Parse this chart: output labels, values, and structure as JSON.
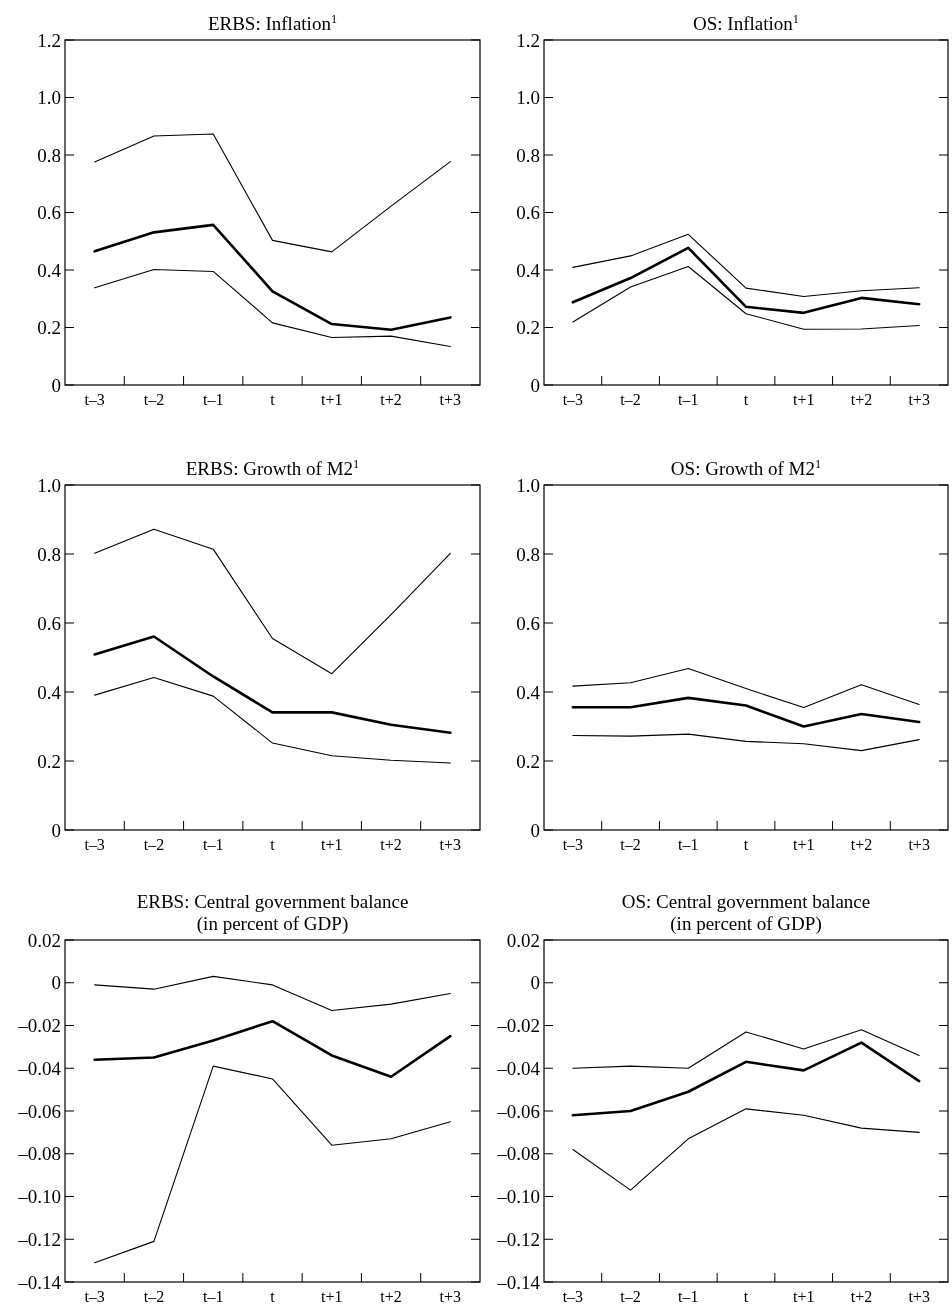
{
  "chart_data": [
    {
      "type": "line",
      "title": "ERBS: Inflation$^{1}$",
      "categories": [
        "t–3",
        "t–2",
        "t–1",
        "t",
        "t+1",
        "t+2",
        "t+3"
      ],
      "ylim": [
        0,
        1.2
      ],
      "yticks": [
        0,
        0.2,
        0.4,
        0.6,
        0.8,
        {
          "value": 1,
          "label": "1.0"
        },
        1.2
      ],
      "series": [
        {
          "color": "#000000",
          "values": [
            0.776,
            0.866,
            0.873,
            0.503,
            0.463,
            0.622,
            0.777
          ]
        },
        {
          "color": "#000000",
          "values": [
            0.465,
            0.531,
            0.557,
            0.326,
            0.212,
            0.192,
            0.235
          ]
        },
        {
          "color": "#000000",
          "values": [
            0.338,
            0.402,
            0.395,
            0.216,
            0.165,
            0.17,
            0.134
          ]
        }
      ]
    },
    {
      "type": "line",
      "title": "OS: Inflation$^{1}$",
      "categories": [
        "t–3",
        "t–2",
        "t–1",
        "t",
        "t+1",
        "t+2",
        "t+3"
      ],
      "ylim": [
        0,
        1.2
      ],
      "yticks": [
        0,
        0.2,
        0.4,
        0.6,
        0.8,
        {
          "value": 1,
          "label": "1.0"
        },
        1.2
      ],
      "series": [
        {
          "color": "#000000",
          "values": [
            0.409,
            0.449,
            0.524,
            0.337,
            0.308,
            0.328,
            0.338
          ]
        },
        {
          "color": "#000000",
          "values": [
            0.288,
            0.372,
            0.477,
            0.272,
            0.251,
            0.303,
            0.281
          ]
        },
        {
          "color": "#000000",
          "values": [
            0.219,
            0.341,
            0.412,
            0.248,
            0.194,
            0.195,
            0.207
          ]
        }
      ]
    },
    {
      "type": "line",
      "title": "ERBS: Growth of M2$^{1}$",
      "categories": [
        "t–3",
        "t–2",
        "t–1",
        "t",
        "t+1",
        "t+2",
        "t+3"
      ],
      "ylim": [
        0,
        1
      ],
      "yticks": [
        0,
        0.2,
        0.4,
        0.6,
        0.8,
        {
          "value": 1,
          "label": "1.0"
        }
      ],
      "series": [
        {
          "color": "#000000",
          "values": [
            0.802,
            0.872,
            0.814,
            0.555,
            0.453,
            0.624,
            0.802
          ]
        },
        {
          "color": "#000000",
          "values": [
            0.509,
            0.561,
            0.445,
            0.341,
            0.341,
            0.305,
            0.282
          ]
        },
        {
          "color": "#000000",
          "values": [
            0.391,
            0.442,
            0.388,
            0.252,
            0.215,
            0.202,
            0.194
          ]
        }
      ]
    },
    {
      "type": "line",
      "title": "OS: Growth of M2$^{1}$",
      "categories": [
        "t–3",
        "t–2",
        "t–1",
        "t",
        "t+1",
        "t+2",
        "t+3"
      ],
      "ylim": [
        0,
        1
      ],
      "yticks": [
        0,
        0.2,
        0.4,
        0.6,
        0.8,
        {
          "value": 1,
          "label": "1.0"
        }
      ],
      "series": [
        {
          "color": "#000000",
          "values": [
            0.417,
            0.427,
            0.468,
            0.41,
            0.355,
            0.421,
            0.364
          ]
        },
        {
          "color": "#000000",
          "values": [
            0.356,
            0.356,
            0.383,
            0.361,
            0.3,
            0.336,
            0.313
          ]
        },
        {
          "color": "#000000",
          "values": [
            0.274,
            0.272,
            0.278,
            0.257,
            0.25,
            0.23,
            0.262
          ]
        }
      ]
    },
    {
      "type": "line",
      "title": "ERBS: Central government balance\n(in percent of GDP)",
      "categories": [
        "t–3",
        "t–2",
        "t–1",
        "t",
        "t+1",
        "t+2",
        "t+3"
      ],
      "ylim": [
        -0.14,
        0.02
      ],
      "yticks": [
        {
          "value": -0.14,
          "label": "–0.14"
        },
        {
          "value": -0.12,
          "label": "–0.12"
        },
        {
          "value": -0.1,
          "label": "–0.10"
        },
        {
          "value": -0.08,
          "label": "–0.08"
        },
        {
          "value": -0.06,
          "label": "–0.06"
        },
        {
          "value": -0.04,
          "label": "–0.04"
        },
        {
          "value": -0.02,
          "label": "–0.02"
        },
        0,
        0.02
      ],
      "series": [
        {
          "color": "#000000",
          "values": [
            -0.001,
            -0.003,
            0.003,
            -0.001,
            -0.013,
            -0.01,
            -0.005
          ]
        },
        {
          "color": "#000000",
          "values": [
            -0.036,
            -0.035,
            -0.027,
            -0.018,
            -0.034,
            -0.044,
            -0.025
          ]
        },
        {
          "color": "#000000",
          "values": [
            -0.131,
            -0.121,
            -0.039,
            -0.045,
            -0.076,
            -0.073,
            -0.065
          ]
        }
      ]
    },
    {
      "type": "line",
      "title": "OS: Central government balance\n(in percent of GDP)",
      "categories": [
        "t–3",
        "t–2",
        "t–1",
        "t",
        "t+1",
        "t+2",
        "t+3"
      ],
      "ylim": [
        -0.14,
        0.02
      ],
      "yticks": [
        {
          "value": -0.14,
          "label": "–0.14"
        },
        {
          "value": -0.12,
          "label": "–0.12"
        },
        {
          "value": -0.1,
          "label": "–0.10"
        },
        {
          "value": -0.08,
          "label": "–0.08"
        },
        {
          "value": -0.06,
          "label": "–0.06"
        },
        {
          "value": -0.04,
          "label": "–0.04"
        },
        {
          "value": -0.02,
          "label": "–0.02"
        },
        0,
        0.02
      ],
      "series": [
        {
          "color": "#000000",
          "values": [
            -0.04,
            -0.039,
            -0.04,
            -0.023,
            -0.031,
            -0.022,
            -0.034
          ]
        },
        {
          "color": "#000000",
          "values": [
            -0.062,
            -0.06,
            -0.051,
            -0.037,
            -0.041,
            -0.028,
            -0.046
          ]
        },
        {
          "color": "#000000",
          "values": [
            -0.078,
            -0.097,
            -0.073,
            -0.059,
            -0.062,
            -0.068,
            -0.07
          ]
        }
      ]
    }
  ]
}
